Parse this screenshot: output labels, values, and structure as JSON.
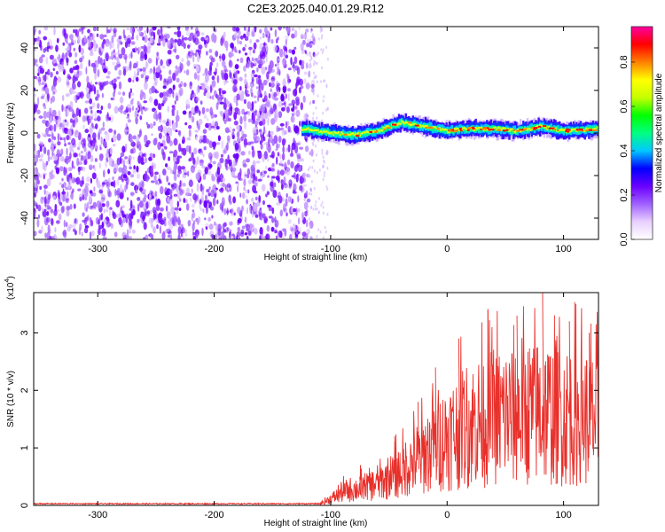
{
  "title": "C2E3.2025.040.01.29.R12",
  "chart_data": [
    {
      "type": "heatmap",
      "xlabel": "Height of straight line (km)",
      "ylabel": "Frequency (Hz)",
      "xlim": [
        -355,
        130
      ],
      "ylim": [
        -50,
        50
      ],
      "x_ticks": [
        -300,
        -200,
        -100,
        0,
        100
      ],
      "y_ticks": [
        -40,
        -20,
        0,
        20,
        40
      ],
      "noise_region_x": [
        -355,
        -120
      ],
      "signal_band": {
        "x_start": -125,
        "center_frequency": [
          [
            -125,
            2
          ],
          [
            -100,
            0
          ],
          [
            -80,
            -1
          ],
          [
            -60,
            1
          ],
          [
            -40,
            5
          ],
          [
            -20,
            3
          ],
          [
            0,
            1
          ],
          [
            20,
            2
          ],
          [
            40,
            2
          ],
          [
            60,
            1
          ],
          [
            80,
            3
          ],
          [
            100,
            1
          ],
          [
            130,
            2
          ]
        ],
        "half_width_hz": 4
      },
      "colorbar": {
        "label": "Normalized spectral amplitude",
        "ticks": [
          0.0,
          0.2,
          0.4,
          0.6,
          0.8
        ],
        "range": [
          0,
          0.96
        ],
        "colors": [
          "#ffffff",
          "#e8d0ff",
          "#a060ff",
          "#6a00ff",
          "#0000ff",
          "#00c8ff",
          "#00ff80",
          "#00ff00",
          "#c8ff00",
          "#ffff00",
          "#ff8000",
          "#ff0000",
          "#ff00a0"
        ]
      },
      "grid": false
    },
    {
      "type": "line",
      "xlabel": "Height of straight line (km)",
      "ylabel": "SNR (10 * v/v)",
      "y_multiplier": "(x10",
      "y_multiplier_exp": "4",
      "y_multiplier_close": ")",
      "xlim": [
        -355,
        130
      ],
      "ylim": [
        0,
        3.7
      ],
      "x_ticks": [
        -300,
        -200,
        -100,
        0,
        100
      ],
      "y_ticks": [
        0,
        1,
        2,
        3
      ],
      "series": [
        {
          "color": "#e8302b",
          "envelope": [
            [
              -355,
              0.03
            ],
            [
              -110,
              0.03
            ],
            [
              -100,
              0.15
            ],
            [
              -90,
              0.3
            ],
            [
              -75,
              0.4
            ],
            [
              -60,
              0.5
            ],
            [
              -45,
              0.7
            ],
            [
              -30,
              1.0
            ],
            [
              -15,
              1.3
            ],
            [
              0,
              1.6
            ],
            [
              15,
              1.8
            ],
            [
              30,
              2.0
            ],
            [
              50,
              2.1
            ],
            [
              80,
              2.2
            ],
            [
              100,
              2.1
            ],
            [
              130,
              2.0
            ]
          ],
          "peak_values": [
            [
              -97,
              0.2
            ],
            [
              -75,
              0.5
            ],
            [
              -45,
              1.2
            ],
            [
              -25,
              1.8
            ],
            [
              -10,
              2.4
            ],
            [
              10,
              2.9
            ],
            [
              35,
              3.4
            ],
            [
              60,
              3.3
            ],
            [
              82,
              3.7
            ],
            [
              105,
              3.2
            ],
            [
              122,
              3.0
            ]
          ]
        }
      ],
      "grid": false
    }
  ]
}
